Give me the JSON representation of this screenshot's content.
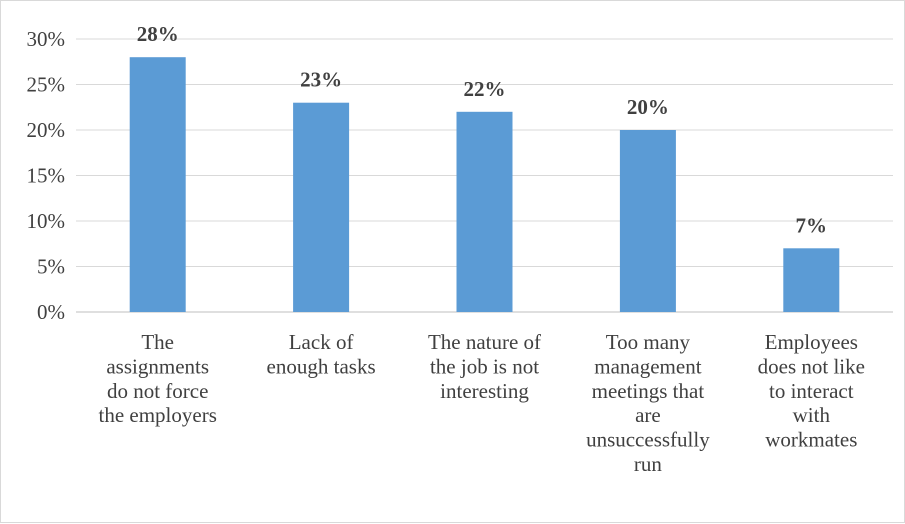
{
  "chart_data": {
    "type": "bar",
    "categories": [
      "The assignments do not force the employers",
      "Lack of enough tasks",
      "The nature of the job is not interesting",
      "Too many management meetings that are unsuccessfully run",
      "Employees does not like to interact with workmates"
    ],
    "category_lines": [
      [
        "The",
        "assignments",
        "do not force",
        "the employers"
      ],
      [
        "Lack of",
        "enough tasks"
      ],
      [
        "The nature of",
        "the job is not",
        "interesting"
      ],
      [
        "Too many",
        "management",
        "meetings that",
        "are",
        "unsuccessfully",
        "run"
      ],
      [
        "Employees",
        "does not like",
        "to interact",
        "with",
        "workmates"
      ]
    ],
    "values": [
      28,
      23,
      22,
      20,
      7
    ],
    "data_labels": [
      "28%",
      "23%",
      "22%",
      "20%",
      "7%"
    ],
    "y_ticks": [
      "0%",
      "5%",
      "10%",
      "15%",
      "20%",
      "25%",
      "30%"
    ],
    "ylim": [
      0,
      30
    ],
    "grid": true,
    "legend": "none",
    "bar_color": "#5b9bd5",
    "grid_color": "#d9d9d9",
    "text_color": "#404040"
  }
}
